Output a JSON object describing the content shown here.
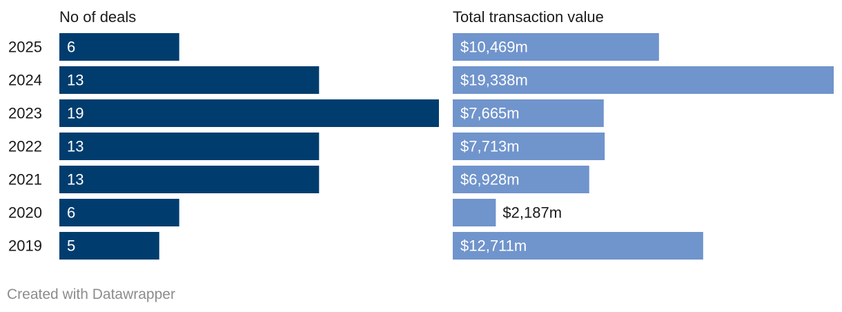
{
  "chart_data": {
    "type": "bar",
    "orientation": "horizontal",
    "categories": [
      "2025",
      "2024",
      "2023",
      "2022",
      "2021",
      "2020",
      "2019"
    ],
    "panels": [
      {
        "title": "No of deals",
        "values": [
          6,
          13,
          19,
          13,
          13,
          6,
          5
        ],
        "labels": [
          "6",
          "13",
          "19",
          "13",
          "13",
          "6",
          "5"
        ],
        "xlim": [
          0,
          19
        ],
        "color": "#003d6e"
      },
      {
        "title": "Total transaction value",
        "values": [
          10469,
          19338,
          7665,
          7713,
          6928,
          2187,
          12711
        ],
        "labels": [
          "$10,469m",
          "$19,338m",
          "$7,665m",
          "$7,713m",
          "$6,928m",
          "$2,187m",
          "$12,711m"
        ],
        "xlim": [
          0,
          19338
        ],
        "color": "#7094cc"
      }
    ],
    "grid": false,
    "legend": "none"
  },
  "footer": {
    "credit": "Created with Datawrapper"
  }
}
